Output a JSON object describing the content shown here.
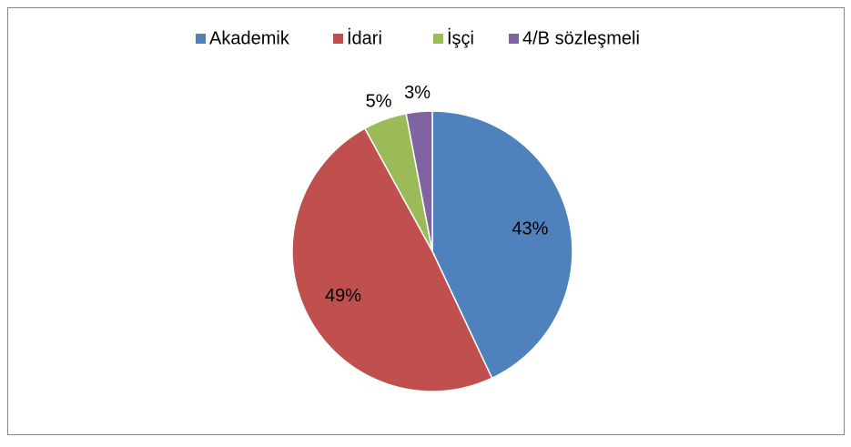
{
  "chart_data": {
    "type": "pie",
    "categories": [
      "Akademik",
      "İdari",
      "İşçi",
      "4/B sözleşmeli"
    ],
    "values": [
      43,
      49,
      5,
      3
    ],
    "value_labels": [
      "43%",
      "49%",
      "5%",
      "3%"
    ],
    "colors": [
      "#4f81bd",
      "#c0504d",
      "#9bbb59",
      "#8064a2"
    ],
    "legend": "top"
  }
}
